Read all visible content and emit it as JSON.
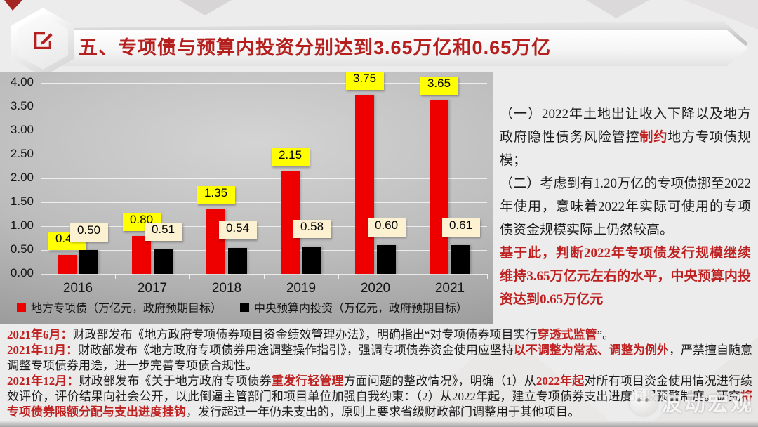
{
  "header": {
    "title": "五、专项债与预算内投资分别达到3.65万亿和0.65万亿"
  },
  "colors": {
    "title_red": "#b5201e",
    "highlight_red": "#bf2121",
    "bar_red": "#ee0000",
    "bar_black": "#000000",
    "label_yellow": "#ffff00",
    "label_cream": "#fcf2d2"
  },
  "chart_data": {
    "type": "bar",
    "categories": [
      "2016",
      "2017",
      "2018",
      "2019",
      "2020",
      "2021"
    ],
    "series": [
      {
        "name": "地方专项债（万亿元，政府预期目标）",
        "color": "#ee0000",
        "label_bg": "#ffff00",
        "values": [
          0.4,
          0.8,
          1.35,
          2.15,
          3.75,
          3.65
        ]
      },
      {
        "name": "中央预算内投资（万亿元，政府预期目标）",
        "color": "#000000",
        "label_bg": "#fcf2d2",
        "values": [
          0.5,
          0.51,
          0.54,
          0.58,
          0.6,
          0.61
        ]
      }
    ],
    "title": "",
    "xlabel": "",
    "ylabel": "",
    "ylim": [
      0,
      4.0
    ],
    "yticks": [
      "4.00",
      "3.50",
      "3.00",
      "2.50",
      "2.00",
      "1.50",
      "1.00",
      "0.50",
      "0.00"
    ],
    "grid": true,
    "legend_position": "bottom"
  },
  "analysis": {
    "paragraphs": [
      {
        "segments": [
          {
            "t": "（一）2022年土地出让收入下降以及地方政府隐性债务风险管控",
            "r": false,
            "b": false
          },
          {
            "t": "制约",
            "r": true,
            "b": true
          },
          {
            "t": "地方专项债规模；",
            "r": false,
            "b": false
          }
        ]
      },
      {
        "segments": [
          {
            "t": "（二）考虑到有1.20万亿的专项债挪至2022年使用，意味着2022年实际可使用的专项债资金规模实际上仍然较高。",
            "r": false,
            "b": false
          }
        ]
      },
      {
        "segments": [
          {
            "t": "基于此，判断2022年专项债发行规模继续维持3.65万亿元左右的水平，中央预算内投资达到0.65万亿元",
            "r": true,
            "b": true
          }
        ]
      }
    ]
  },
  "policy": {
    "paragraphs": [
      {
        "segments": [
          {
            "t": "2021年6月：",
            "r": true,
            "b": true
          },
          {
            "t": "财政部发布《地方政府专项债券项目资金绩效管理办法》，明确指出“对专项债券项目实行",
            "r": false,
            "b": false
          },
          {
            "t": "穿透式监管",
            "r": true,
            "b": true
          },
          {
            "t": "”。",
            "r": false,
            "b": false
          }
        ]
      },
      {
        "segments": [
          {
            "t": "2021年11月：",
            "r": true,
            "b": true
          },
          {
            "t": "财政部发布《地方政府专项债券用途调整操作指引》，强调专项债券资金使用应坚持",
            "r": false,
            "b": false
          },
          {
            "t": "以不调整为常态、调整为例外",
            "r": true,
            "b": true
          },
          {
            "t": "，严禁擅自随意调整专项债券用途，进一步完善专项债合规性。",
            "r": false,
            "b": false
          }
        ]
      },
      {
        "segments": [
          {
            "t": "2021年12月：",
            "r": true,
            "b": true
          },
          {
            "t": "财政部发布《关于地方政府专项债券",
            "r": false,
            "b": false
          },
          {
            "t": "重发行轻管理",
            "r": true,
            "b": true
          },
          {
            "t": "方面问题的整改情况》，明确（1）从",
            "r": false,
            "b": false
          },
          {
            "t": "2022年起",
            "r": true,
            "b": true
          },
          {
            "t": "对所有项目资金使用情况进行绩效评价，评价结果向社会公开，以此倒逼主管部门和项目单位加强自我约束：（2）从2022年起，建立专项债券支出进度通报预警制度。研究",
            "r": false,
            "b": false
          },
          {
            "t": "将专项债券限额分配与支出进度挂钩",
            "r": true,
            "b": true
          },
          {
            "t": "，发行超过一年仍未支出的，原则上要求省级财政部门调整用于其他项目。",
            "r": false,
            "b": false
          }
        ]
      }
    ]
  },
  "watermark": {
    "text": "波动宏观"
  }
}
